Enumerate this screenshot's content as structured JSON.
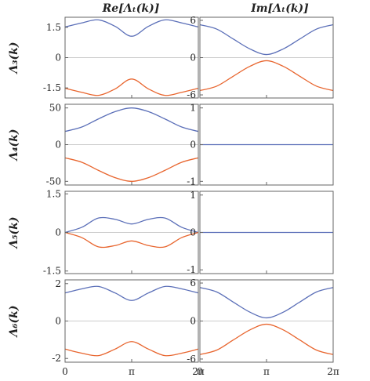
{
  "column_titles": {
    "re": "Re[Λₜ(k)]",
    "im": "Im[Λₜ(k)]"
  },
  "row_labels": [
    "Λ₃(k)",
    "Λ₄(k)",
    "Λ₅(k)",
    "Λ₆(k)"
  ],
  "colors": {
    "blue": "#5b6fb8",
    "orange": "#e8652e"
  },
  "chart_data": [
    {
      "type": "line",
      "panel": "Re Λ3",
      "x": [
        0,
        0.79,
        1.57,
        2.36,
        3.14,
        3.93,
        4.71,
        5.5,
        6.28
      ],
      "ylim": [
        -2.0,
        2.0
      ],
      "ytick_values": [
        1.5,
        0,
        -1.5
      ],
      "ytick_labels": [
        "1.5",
        "0",
        "-1.5"
      ],
      "xticks": [],
      "series": [
        {
          "values": [
            1.52,
            1.72,
            1.87,
            1.55,
            1.06,
            1.55,
            1.87,
            1.72,
            1.52
          ]
        },
        {
          "values": [
            -1.52,
            -1.72,
            -1.87,
            -1.55,
            -1.06,
            -1.55,
            -1.87,
            -1.72,
            -1.52
          ]
        }
      ]
    },
    {
      "type": "line",
      "panel": "Im Λ3",
      "x": [
        0,
        0.79,
        1.57,
        2.36,
        3.14,
        3.93,
        4.71,
        5.5,
        6.28
      ],
      "ylim": [
        -6.5,
        6.5
      ],
      "ytick_values": [
        6,
        0,
        -6
      ],
      "ytick_labels": [
        "6",
        "0",
        "-6"
      ],
      "xticks": [],
      "series": [
        {
          "values": [
            5.3,
            4.6,
            3.0,
            1.4,
            0.5,
            1.4,
            3.0,
            4.6,
            5.3
          ]
        },
        {
          "values": [
            -5.3,
            -4.6,
            -3.0,
            -1.4,
            -0.5,
            -1.4,
            -3.0,
            -4.6,
            -5.3
          ]
        }
      ]
    },
    {
      "type": "line",
      "panel": "Re Λ4",
      "x": [
        0,
        0.79,
        1.57,
        2.36,
        3.14,
        3.93,
        4.71,
        5.5,
        6.28
      ],
      "ylim": [
        -55,
        55
      ],
      "ytick_values": [
        50,
        0,
        -50
      ],
      "ytick_labels": [
        "50",
        "0",
        "-50"
      ],
      "xticks": [],
      "series": [
        {
          "values": [
            18,
            24,
            35,
            45,
            50,
            45,
            35,
            24,
            18
          ]
        },
        {
          "values": [
            -18,
            -24,
            -35,
            -45,
            -50,
            -45,
            -35,
            -24,
            -18
          ]
        }
      ]
    },
    {
      "type": "line",
      "panel": "Im Λ4",
      "x": [
        0,
        6.28
      ],
      "ylim": [
        -1.1,
        1.1
      ],
      "ytick_values": [
        1,
        0,
        -1
      ],
      "ytick_labels": [
        "1",
        "0",
        "-1"
      ],
      "xticks": [],
      "series": [
        {
          "values": [
            0,
            0
          ]
        }
      ]
    },
    {
      "type": "line",
      "panel": "Re Λ5",
      "x": [
        0,
        0.79,
        1.57,
        2.36,
        3.14,
        3.93,
        4.71,
        5.5,
        6.28
      ],
      "ylim": [
        -1.6,
        1.6
      ],
      "ytick_values": [
        1.5,
        0,
        -1.5
      ],
      "ytick_labels": [
        "1.5",
        "0",
        "-1.5"
      ],
      "xticks": [],
      "series": [
        {
          "values": [
            0,
            0.2,
            0.56,
            0.51,
            0.33,
            0.51,
            0.56,
            0.2,
            0
          ]
        },
        {
          "values": [
            0,
            -0.2,
            -0.56,
            -0.51,
            -0.33,
            -0.51,
            -0.56,
            -0.2,
            0
          ]
        }
      ]
    },
    {
      "type": "line",
      "panel": "Im Λ5",
      "x": [
        0,
        6.28
      ],
      "ylim": [
        -1.1,
        1.1
      ],
      "ytick_values": [
        1,
        0,
        -1
      ],
      "ytick_labels": [
        "1",
        "0",
        "-1"
      ],
      "xticks": [],
      "series": [
        {
          "values": [
            0,
            0
          ]
        }
      ]
    },
    {
      "type": "line",
      "panel": "Re Λ6",
      "x": [
        0,
        0.79,
        1.57,
        2.36,
        3.14,
        3.93,
        4.71,
        5.5,
        6.28
      ],
      "ylim": [
        -2.2,
        2.2
      ],
      "ytick_values": [
        2,
        0,
        -2
      ],
      "ytick_labels": [
        "2",
        "0",
        "-2"
      ],
      "xticks": [
        "0",
        "π",
        "2π"
      ],
      "series": [
        {
          "values": [
            1.5,
            1.72,
            1.85,
            1.5,
            1.1,
            1.5,
            1.85,
            1.72,
            1.5
          ]
        },
        {
          "values": [
            -1.5,
            -1.72,
            -1.85,
            -1.5,
            -1.1,
            -1.5,
            -1.85,
            -1.72,
            -1.5
          ]
        }
      ]
    },
    {
      "type": "line",
      "panel": "Im Λ6",
      "x": [
        0,
        0.79,
        1.57,
        2.36,
        3.14,
        3.93,
        4.71,
        5.5,
        6.28
      ],
      "ylim": [
        -6.5,
        6.5
      ],
      "ytick_values": [
        6,
        0,
        -6
      ],
      "ytick_labels": [
        "6",
        "0",
        "-6"
      ],
      "xticks": [
        "0",
        "π",
        "2π"
      ],
      "series": [
        {
          "values": [
            5.3,
            4.6,
            3.0,
            1.4,
            0.5,
            1.4,
            3.0,
            4.6,
            5.3
          ]
        },
        {
          "values": [
            -5.3,
            -4.6,
            -3.0,
            -1.4,
            -0.5,
            -1.4,
            -3.0,
            -4.6,
            -5.3
          ]
        }
      ]
    }
  ]
}
